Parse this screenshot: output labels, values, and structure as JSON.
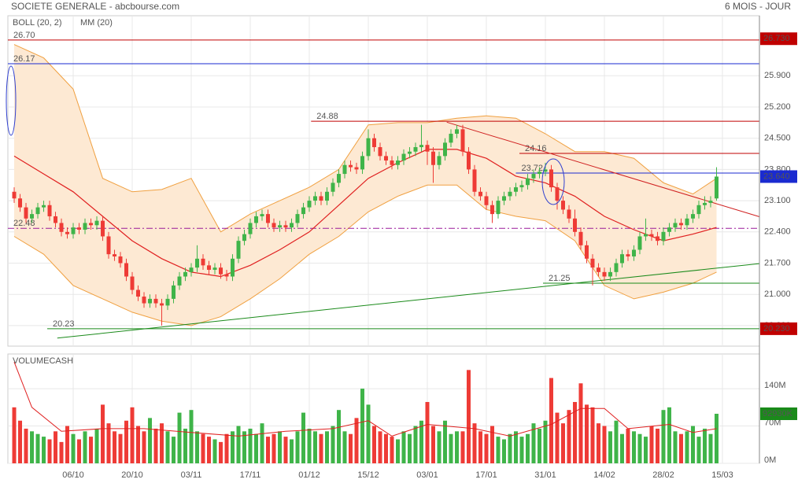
{
  "chart_data": [
    {
      "type": "candlestick",
      "title": "SOCIETE GENERALE - abcbourse.com",
      "subtitle": "6 MOIS - JOUR",
      "xlim": [
        -1.07,
        126.27
      ],
      "ylim": [
        19.84,
        27.21
      ],
      "yticks": [
        {
          "value": 25.9,
          "label": "25.900"
        },
        {
          "value": 25.2,
          "label": "25.200"
        },
        {
          "value": 24.5,
          "label": "24.500"
        },
        {
          "value": 23.8,
          "label": "23.800"
        },
        {
          "value": 23.1,
          "label": "23.100"
        },
        {
          "value": 22.4,
          "label": "22.400"
        },
        {
          "value": 21.7,
          "label": "21.700"
        },
        {
          "value": 21.0,
          "label": "21.000"
        },
        {
          "value": 20.3,
          "label": "20.300"
        }
      ],
      "xticks": [
        {
          "value": 10,
          "label": "06/10"
        },
        {
          "value": 20,
          "label": "20/10"
        },
        {
          "value": 30,
          "label": "03/11"
        },
        {
          "value": 40,
          "label": "17/11"
        },
        {
          "value": 50,
          "label": "01/12"
        },
        {
          "value": 60,
          "label": "15/12"
        },
        {
          "value": 70,
          "label": "03/01"
        },
        {
          "value": 80,
          "label": "17/01"
        },
        {
          "value": 90,
          "label": "31/01"
        },
        {
          "value": 100,
          "label": "14/02"
        },
        {
          "value": 110,
          "label": "28/02"
        },
        {
          "value": 120,
          "label": "15/03"
        }
      ],
      "grid": true,
      "up_color": "#3fb449",
      "down_color": "#ee3b36",
      "candles": [
        [
          23.3,
          23.4,
          23.05,
          23.15
        ],
        [
          23.15,
          23.25,
          22.85,
          22.95
        ],
        [
          22.95,
          23.05,
          22.6,
          22.7
        ],
        [
          22.7,
          22.9,
          22.6,
          22.8
        ],
        [
          22.8,
          23.05,
          22.7,
          22.95
        ],
        [
          22.95,
          23.1,
          22.85,
          23.0
        ],
        [
          23.0,
          23.1,
          22.65,
          22.75
        ],
        [
          22.75,
          22.85,
          22.5,
          22.6
        ],
        [
          22.6,
          22.7,
          22.3,
          22.4
        ],
        [
          22.4,
          22.5,
          22.25,
          22.35
        ],
        [
          22.35,
          22.6,
          22.25,
          22.5
        ],
        [
          22.5,
          22.6,
          22.35,
          22.45
        ],
        [
          22.45,
          22.7,
          22.35,
          22.6
        ],
        [
          22.6,
          22.7,
          22.45,
          22.55
        ],
        [
          22.55,
          22.75,
          22.45,
          22.65
        ],
        [
          22.65,
          22.75,
          22.2,
          22.3
        ],
        [
          22.3,
          22.4,
          21.8,
          21.9
        ],
        [
          21.9,
          22.0,
          21.75,
          21.85
        ],
        [
          21.85,
          21.95,
          21.6,
          21.7
        ],
        [
          21.7,
          21.8,
          21.3,
          21.4
        ],
        [
          21.4,
          21.5,
          21.0,
          21.1
        ],
        [
          21.1,
          21.2,
          20.85,
          20.95
        ],
        [
          20.95,
          21.05,
          20.7,
          20.8
        ],
        [
          20.8,
          21.0,
          20.7,
          20.9
        ],
        [
          20.9,
          21.0,
          20.7,
          20.8
        ],
        [
          20.8,
          20.9,
          20.3,
          20.75
        ],
        [
          20.75,
          21.0,
          20.65,
          20.9
        ],
        [
          20.9,
          21.3,
          20.8,
          21.2
        ],
        [
          21.2,
          21.5,
          21.1,
          21.4
        ],
        [
          21.4,
          21.6,
          21.3,
          21.5
        ],
        [
          21.5,
          21.7,
          21.4,
          21.6
        ],
        [
          21.6,
          22.1,
          21.5,
          21.8
        ],
        [
          21.8,
          21.9,
          21.55,
          21.65
        ],
        [
          21.65,
          21.75,
          21.45,
          21.55
        ],
        [
          21.55,
          21.7,
          21.45,
          21.6
        ],
        [
          21.6,
          21.7,
          21.35,
          21.45
        ],
        [
          21.45,
          21.55,
          21.3,
          21.4
        ],
        [
          21.4,
          21.9,
          21.3,
          21.8
        ],
        [
          21.8,
          22.3,
          21.7,
          22.2
        ],
        [
          22.2,
          22.45,
          22.1,
          22.35
        ],
        [
          22.35,
          22.7,
          22.25,
          22.6
        ],
        [
          22.6,
          22.85,
          22.5,
          22.75
        ],
        [
          22.75,
          22.9,
          22.65,
          22.8
        ],
        [
          22.8,
          22.9,
          22.5,
          22.6
        ],
        [
          22.6,
          22.7,
          22.4,
          22.5
        ],
        [
          22.5,
          22.65,
          22.4,
          22.55
        ],
        [
          22.55,
          22.65,
          22.4,
          22.5
        ],
        [
          22.5,
          22.7,
          22.4,
          22.6
        ],
        [
          22.6,
          22.9,
          22.5,
          22.8
        ],
        [
          22.8,
          23.05,
          22.7,
          22.95
        ],
        [
          22.95,
          23.2,
          22.85,
          23.1
        ],
        [
          23.1,
          23.3,
          23.0,
          23.2
        ],
        [
          23.2,
          23.3,
          23.0,
          23.1
        ],
        [
          23.1,
          23.4,
          23.0,
          23.3
        ],
        [
          23.3,
          23.6,
          23.2,
          23.5
        ],
        [
          23.5,
          23.8,
          23.4,
          23.7
        ],
        [
          23.7,
          24.0,
          23.6,
          23.9
        ],
        [
          23.9,
          24.0,
          23.75,
          23.85
        ],
        [
          23.85,
          23.95,
          23.7,
          23.8
        ],
        [
          23.8,
          24.2,
          23.7,
          24.1
        ],
        [
          24.1,
          24.7,
          24.0,
          24.5
        ],
        [
          24.5,
          24.6,
          24.2,
          24.3
        ],
        [
          24.3,
          24.4,
          24.0,
          24.1
        ],
        [
          24.1,
          24.2,
          23.9,
          24.0
        ],
        [
          24.0,
          24.1,
          23.8,
          23.9
        ],
        [
          23.9,
          24.1,
          23.8,
          24.0
        ],
        [
          24.0,
          24.25,
          23.9,
          24.15
        ],
        [
          24.15,
          24.3,
          24.05,
          24.2
        ],
        [
          24.2,
          24.4,
          24.1,
          24.3
        ],
        [
          24.3,
          24.8,
          24.2,
          24.35
        ],
        [
          24.35,
          24.45,
          23.9,
          24.2
        ],
        [
          24.2,
          24.3,
          23.5,
          23.9
        ],
        [
          23.9,
          24.2,
          23.8,
          24.1
        ],
        [
          24.1,
          24.5,
          24.0,
          24.4
        ],
        [
          24.4,
          24.7,
          24.3,
          24.6
        ],
        [
          24.6,
          24.8,
          24.5,
          24.7
        ],
        [
          24.7,
          24.8,
          24.1,
          24.2
        ],
        [
          24.2,
          24.3,
          23.7,
          23.8
        ],
        [
          23.8,
          23.9,
          23.2,
          23.3
        ],
        [
          23.3,
          23.4,
          23.1,
          23.2
        ],
        [
          23.2,
          23.3,
          22.9,
          23.0
        ],
        [
          23.0,
          23.1,
          22.6,
          22.8
        ],
        [
          22.8,
          23.2,
          22.7,
          23.1
        ],
        [
          23.1,
          23.3,
          23.0,
          23.2
        ],
        [
          23.2,
          23.4,
          23.1,
          23.3
        ],
        [
          23.3,
          23.5,
          23.2,
          23.4
        ],
        [
          23.4,
          23.55,
          23.3,
          23.45
        ],
        [
          23.45,
          23.7,
          23.35,
          23.6
        ],
        [
          23.6,
          23.8,
          23.5,
          23.7
        ],
        [
          23.7,
          23.85,
          23.6,
          23.75
        ],
        [
          23.75,
          23.95,
          23.65,
          23.8
        ],
        [
          23.8,
          23.9,
          23.3,
          23.4
        ],
        [
          23.4,
          23.5,
          22.9,
          23.1
        ],
        [
          23.1,
          23.2,
          22.8,
          22.9
        ],
        [
          22.9,
          23.0,
          22.6,
          22.7
        ],
        [
          22.7,
          22.9,
          22.3,
          22.4
        ],
        [
          22.4,
          22.5,
          22.0,
          22.1
        ],
        [
          22.1,
          22.2,
          21.7,
          21.8
        ],
        [
          21.8,
          21.9,
          21.2,
          21.6
        ],
        [
          21.6,
          21.7,
          21.4,
          21.5
        ],
        [
          21.5,
          21.6,
          21.3,
          21.4
        ],
        [
          21.4,
          21.6,
          21.3,
          21.5
        ],
        [
          21.5,
          21.8,
          21.4,
          21.7
        ],
        [
          21.7,
          22.0,
          21.6,
          21.9
        ],
        [
          21.9,
          22.0,
          21.75,
          21.85
        ],
        [
          21.85,
          22.1,
          21.75,
          22.0
        ],
        [
          22.0,
          22.4,
          21.9,
          22.3
        ],
        [
          22.3,
          22.7,
          22.2,
          22.35
        ],
        [
          22.35,
          22.45,
          22.2,
          22.3
        ],
        [
          22.3,
          22.4,
          22.1,
          22.2
        ],
        [
          22.2,
          22.5,
          22.1,
          22.4
        ],
        [
          22.4,
          22.6,
          22.3,
          22.5
        ],
        [
          22.5,
          22.7,
          22.4,
          22.6
        ],
        [
          22.6,
          22.7,
          22.45,
          22.55
        ],
        [
          22.55,
          22.8,
          22.45,
          22.7
        ],
        [
          22.7,
          22.9,
          22.6,
          22.8
        ],
        [
          22.8,
          23.1,
          22.7,
          23.0
        ],
        [
          23.0,
          23.2,
          22.9,
          23.05
        ],
        [
          23.05,
          23.2,
          22.95,
          23.1
        ],
        [
          23.15,
          23.85,
          23.1,
          23.64
        ]
      ],
      "bollinger": {
        "name": "BOLL (20, 2)",
        "color": "#f0a040",
        "fill": "#fde9d3",
        "x": [
          0,
          5,
          10,
          15,
          20,
          25,
          30,
          35,
          40,
          45,
          50,
          55,
          60,
          65,
          70,
          75,
          80,
          85,
          90,
          95,
          100,
          105,
          110,
          115,
          119
        ],
        "upper": [
          26.6,
          26.3,
          25.6,
          23.6,
          23.3,
          23.35,
          23.6,
          22.4,
          22.8,
          23.1,
          23.4,
          23.8,
          24.8,
          24.85,
          24.85,
          24.95,
          25.0,
          24.95,
          24.6,
          24.2,
          24.2,
          24.05,
          23.5,
          23.25,
          23.6
        ],
        "lower": [
          22.3,
          21.9,
          21.2,
          20.9,
          20.6,
          20.4,
          20.3,
          20.5,
          20.9,
          21.35,
          21.9,
          22.3,
          22.85,
          23.2,
          23.45,
          23.45,
          22.9,
          22.75,
          22.65,
          22.2,
          21.2,
          20.9,
          21.05,
          21.25,
          21.5
        ]
      },
      "ma": {
        "name": "MM (20)",
        "color": "#e02020",
        "x": [
          0,
          5,
          10,
          15,
          20,
          25,
          30,
          35,
          40,
          45,
          50,
          55,
          60,
          65,
          70,
          75,
          80,
          85,
          90,
          95,
          100,
          105,
          110,
          115,
          119
        ],
        "values": [
          24.1,
          23.7,
          23.3,
          22.75,
          22.2,
          21.8,
          21.5,
          21.4,
          21.65,
          22.0,
          22.4,
          23.0,
          23.6,
          23.95,
          24.25,
          24.25,
          24.05,
          23.65,
          23.5,
          23.2,
          22.75,
          22.45,
          22.2,
          22.35,
          22.5
        ]
      },
      "levels": [
        {
          "value": 26.7,
          "label": "26.70",
          "color": "#c00000",
          "from": -1.07
        },
        {
          "value": 26.17,
          "label": "26.17",
          "color": "#1a2ad0",
          "from": -1.07
        },
        {
          "value": 24.88,
          "label": "24.88",
          "color": "#c00000",
          "from": 50.3
        },
        {
          "value": 24.16,
          "label": "24.16",
          "color": "#c00000",
          "from": 85.6
        },
        {
          "value": 23.72,
          "label": "23.72",
          "color": "#1a2ad0",
          "from": 85.0
        },
        {
          "value": 22.48,
          "label": "22.48",
          "color": "#9a1a9a",
          "from": -1.07,
          "style": "dashdot"
        },
        {
          "value": 21.25,
          "label": "21.25",
          "color": "#1a8a1a",
          "from": 89.6
        },
        {
          "value": 20.23,
          "label": "20.23",
          "color": "#1a8a1a",
          "from": 5.6
        }
      ],
      "trendlines": [
        {
          "color": "#d02020",
          "x": [
            73.3,
            126.27
          ],
          "values": [
            24.86,
            22.74
          ]
        },
        {
          "color": "#1a8a1a",
          "x": [
            7.3,
            126.27
          ],
          "values": [
            20.02,
            21.69
          ]
        }
      ],
      "badges": [
        {
          "value": 26.73,
          "label": "26.730",
          "color": "#c00000"
        },
        {
          "value": 23.64,
          "label": "23.640",
          "color": "#1a2ad0"
        },
        {
          "value": 20.23,
          "label": "20.230",
          "color": "#c00000"
        }
      ]
    },
    {
      "type": "bar",
      "title": "VOLUMECASH",
      "ylim": [
        0,
        205
      ],
      "yticks": [
        {
          "value": 0,
          "label": "0M"
        },
        {
          "value": 70,
          "label": "70M"
        },
        {
          "value": 140,
          "label": "140M"
        }
      ],
      "values": [
        105,
        80,
        65,
        60,
        55,
        50,
        45,
        60,
        40,
        70,
        55,
        45,
        60,
        50,
        65,
        110,
        75,
        60,
        55,
        80,
        105,
        70,
        60,
        85,
        65,
        75,
        60,
        50,
        95,
        65,
        100,
        60,
        55,
        50,
        45,
        40,
        55,
        60,
        70,
        60,
        65,
        55,
        75,
        50,
        55,
        60,
        50,
        45,
        60,
        95,
        65,
        60,
        55,
        60,
        70,
        100,
        60,
        55,
        85,
        140,
        110,
        70,
        60,
        55,
        50,
        45,
        60,
        55,
        70,
        80,
        115,
        70,
        60,
        80,
        55,
        60,
        60,
        175,
        75,
        60,
        55,
        70,
        50,
        45,
        55,
        60,
        50,
        55,
        75,
        65,
        80,
        160,
        95,
        75,
        100,
        115,
        150,
        110,
        105,
        75,
        70,
        60,
        80,
        55,
        65,
        60,
        55,
        50,
        70,
        65,
        100,
        105,
        60,
        55,
        60,
        70,
        50,
        65,
        55,
        92.93
      ],
      "ma": {
        "color": "#e02020",
        "x": [
          0,
          3,
          8,
          15,
          22,
          30,
          38,
          46,
          54,
          60,
          64,
          70,
          78,
          84,
          91,
          96,
          100,
          104,
          111,
          115,
          119
        ],
        "values": [
          190,
          105,
          60,
          65,
          65,
          58,
          51,
          60,
          65,
          80,
          51,
          73,
          65,
          51,
          73,
          103,
          103,
          65,
          73,
          58,
          65
        ]
      },
      "badge": {
        "value": 92.93,
        "label": "92930K",
        "color": "#1a8a1a"
      }
    }
  ]
}
